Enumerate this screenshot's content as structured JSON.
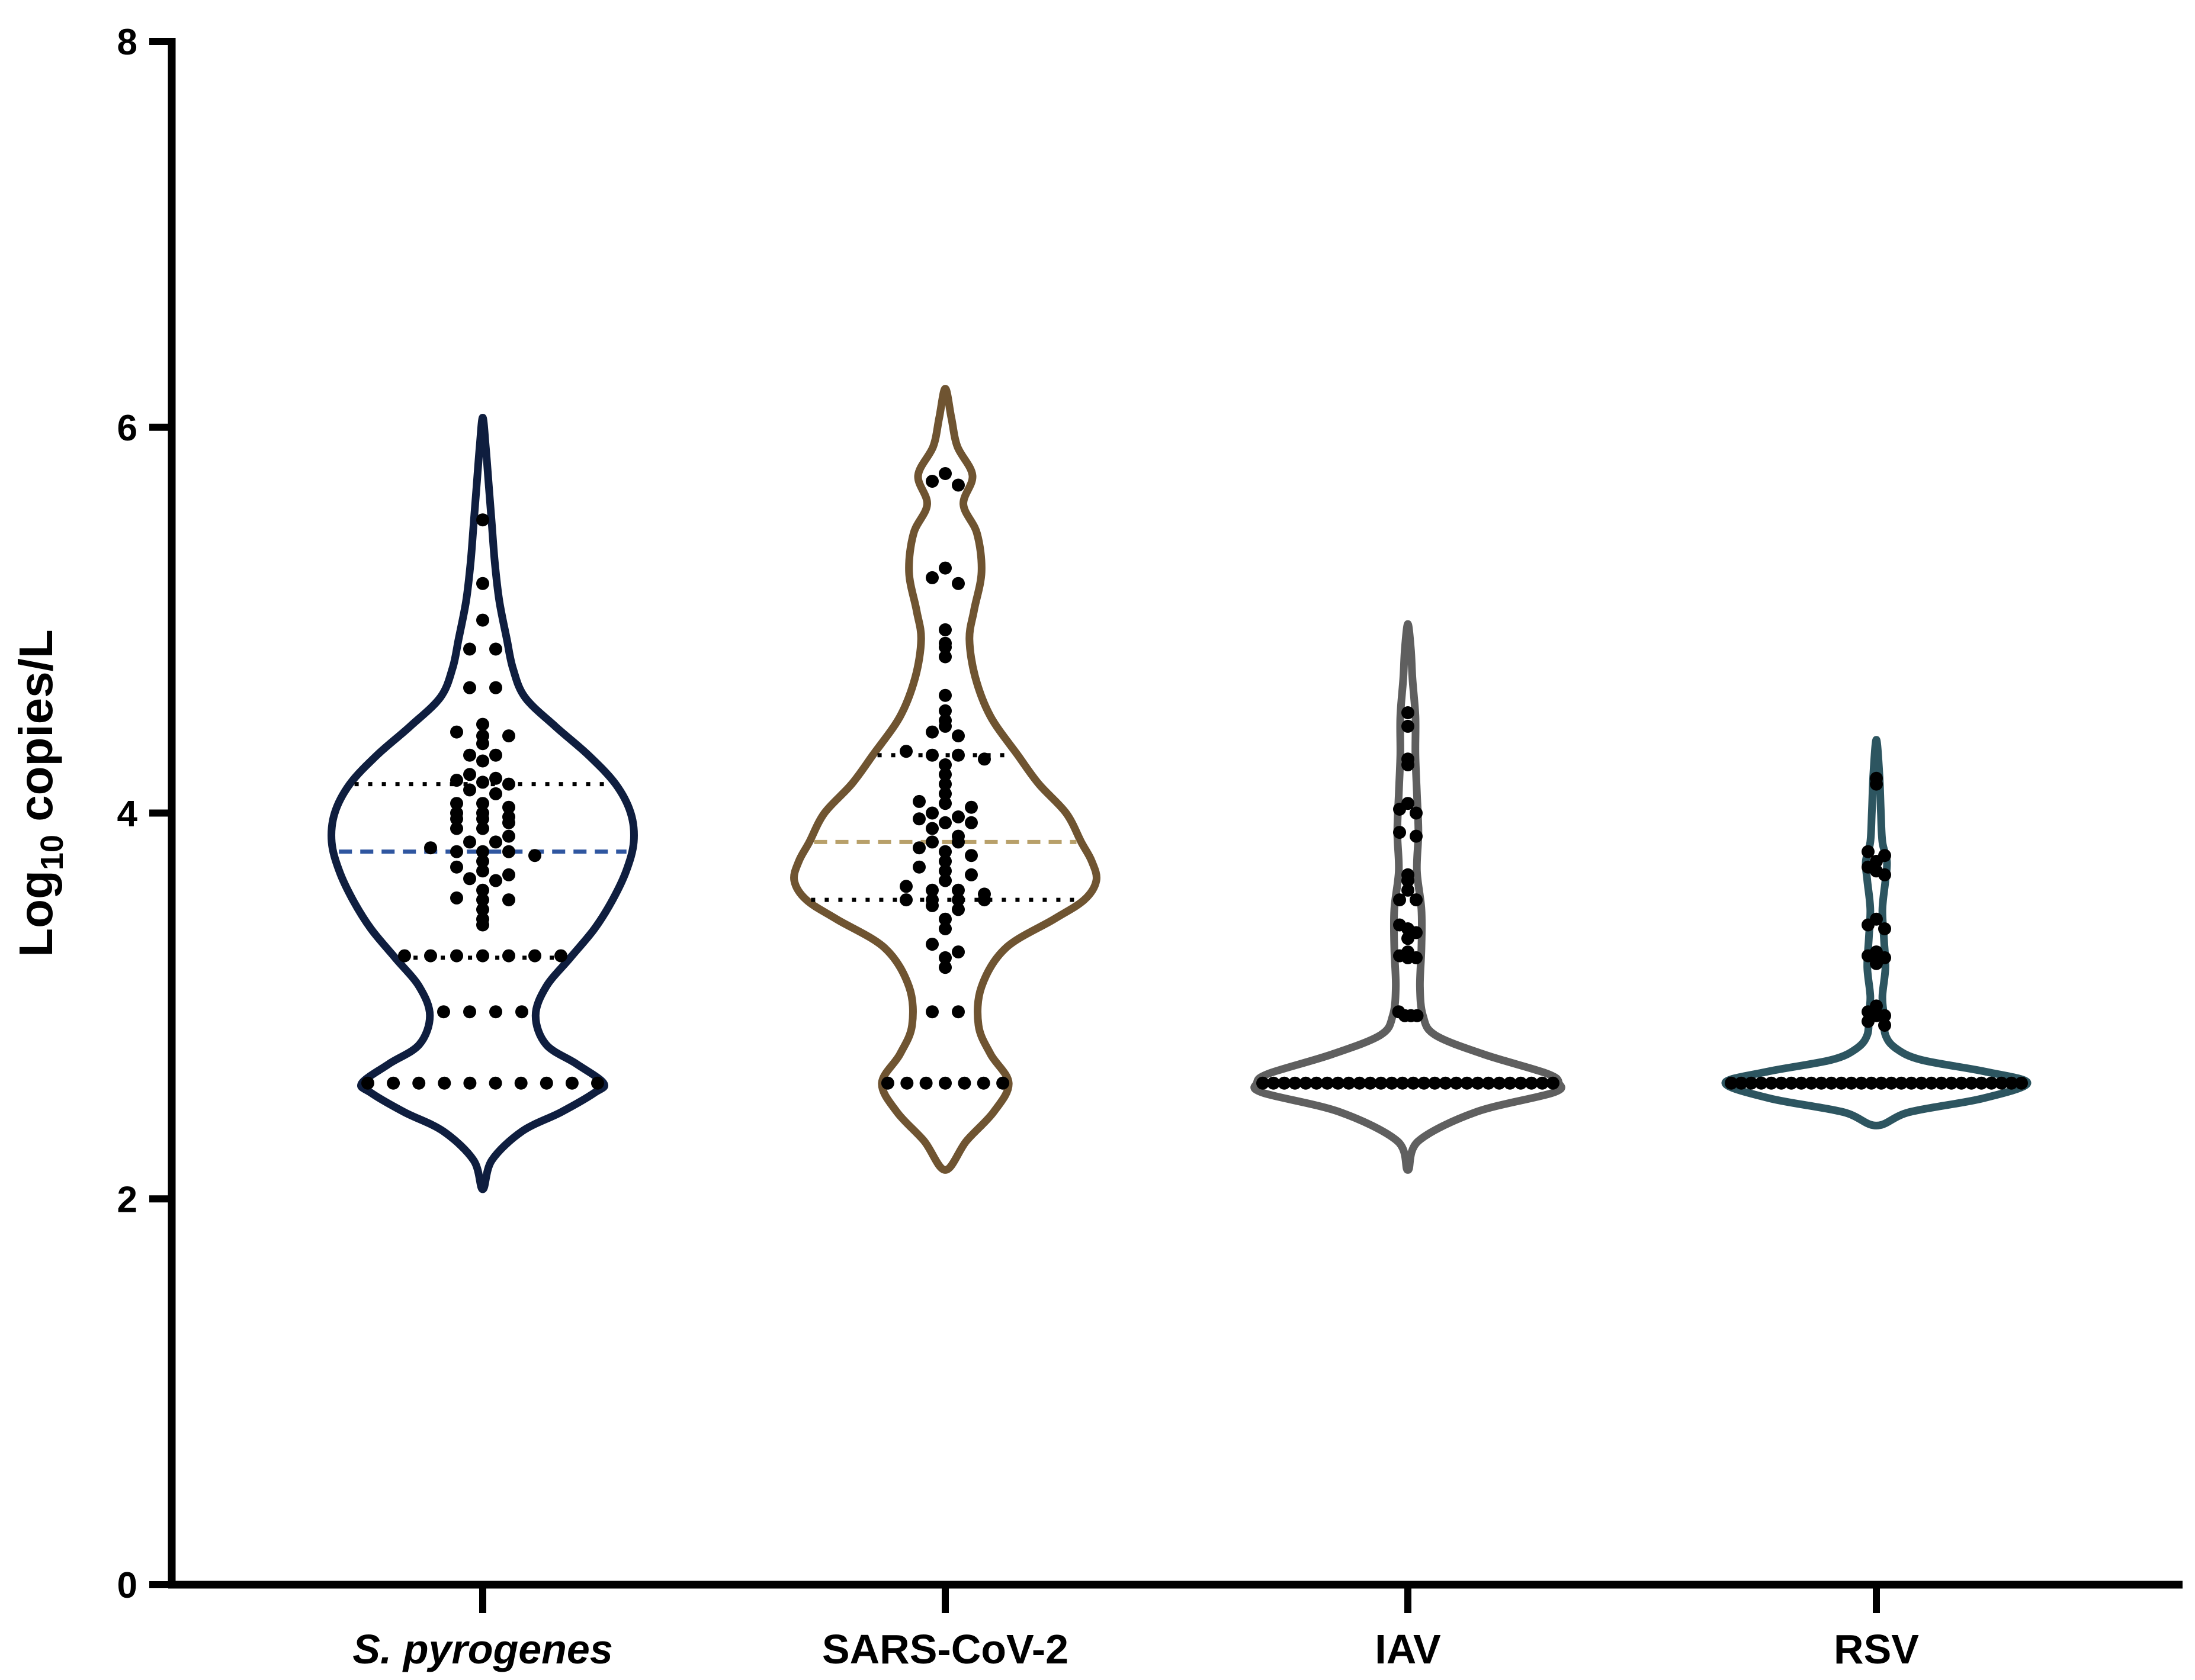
{
  "chart_data": {
    "type": "violin",
    "ylabel": {
      "base": "Log",
      "subscript": "10",
      "rest": " copies/L"
    },
    "ylim": [
      0,
      8
    ],
    "yticks": [
      "0",
      "2",
      "4",
      "6",
      "8"
    ],
    "detection_floor": 2.6,
    "series": [
      {
        "name": "S. pyrogenes",
        "italic": true,
        "color": "#0f1e3f",
        "median_color": "#2f56a0",
        "range": [
          2.05,
          6.05
        ],
        "median": 3.8,
        "q1": 3.25,
        "q3": 4.15,
        "profile": [
          [
            2.05,
            0
          ],
          [
            2.2,
            0.06
          ],
          [
            2.35,
            0.26
          ],
          [
            2.45,
            0.52
          ],
          [
            2.55,
            0.74
          ],
          [
            2.6,
            0.8
          ],
          [
            2.7,
            0.62
          ],
          [
            2.8,
            0.42
          ],
          [
            2.95,
            0.35
          ],
          [
            3.1,
            0.42
          ],
          [
            3.25,
            0.58
          ],
          [
            3.4,
            0.74
          ],
          [
            3.55,
            0.86
          ],
          [
            3.7,
            0.95
          ],
          [
            3.85,
            1.0
          ],
          [
            4.0,
            0.98
          ],
          [
            4.15,
            0.88
          ],
          [
            4.3,
            0.7
          ],
          [
            4.45,
            0.48
          ],
          [
            4.6,
            0.28
          ],
          [
            4.75,
            0.2
          ],
          [
            4.9,
            0.16
          ],
          [
            5.1,
            0.11
          ],
          [
            5.3,
            0.08
          ],
          [
            5.5,
            0.06
          ],
          [
            5.7,
            0.04
          ],
          [
            5.9,
            0.02
          ],
          [
            6.05,
            0
          ]
        ],
        "points": [
          5.52,
          5.19,
          5.0,
          4.85,
          4.85,
          4.65,
          4.65,
          4.46,
          4.42,
          4.4,
          4.4,
          4.36,
          4.3,
          4.3,
          4.27,
          4.2,
          4.18,
          4.17,
          4.16,
          4.15,
          4.12,
          4.1,
          4.05,
          4.05,
          4.03,
          4.0,
          4.0,
          3.98,
          3.97,
          3.97,
          3.95,
          3.92,
          3.92,
          3.88,
          3.85,
          3.85,
          3.82,
          3.8,
          3.8,
          3.8,
          3.78,
          3.75,
          3.72,
          3.7,
          3.68,
          3.66,
          3.65,
          3.6,
          3.56,
          3.55,
          3.55,
          3.5,
          3.45,
          3.42,
          3.26,
          3.26,
          3.26,
          3.26,
          3.26,
          3.26,
          3.26,
          2.97,
          2.97,
          2.97,
          2.97,
          2.6,
          2.6,
          2.6,
          2.6,
          2.6,
          2.6,
          2.6,
          2.6,
          2.6,
          2.6
        ]
      },
      {
        "name": "SARS-CoV-2",
        "italic": false,
        "color": "#6f5431",
        "median_color": "#b8a06a",
        "range": [
          2.15,
          6.2
        ],
        "median": 3.85,
        "q1": 3.55,
        "q3": 4.3,
        "profile": [
          [
            2.15,
            0
          ],
          [
            2.3,
            0.14
          ],
          [
            2.45,
            0.32
          ],
          [
            2.6,
            0.42
          ],
          [
            2.75,
            0.3
          ],
          [
            2.9,
            0.22
          ],
          [
            3.1,
            0.24
          ],
          [
            3.3,
            0.4
          ],
          [
            3.45,
            0.72
          ],
          [
            3.55,
            0.92
          ],
          [
            3.65,
            1.0
          ],
          [
            3.75,
            0.97
          ],
          [
            3.85,
            0.9
          ],
          [
            4.0,
            0.8
          ],
          [
            4.15,
            0.62
          ],
          [
            4.3,
            0.48
          ],
          [
            4.5,
            0.3
          ],
          [
            4.7,
            0.2
          ],
          [
            4.9,
            0.16
          ],
          [
            5.05,
            0.19
          ],
          [
            5.25,
            0.24
          ],
          [
            5.45,
            0.21
          ],
          [
            5.6,
            0.12
          ],
          [
            5.75,
            0.18
          ],
          [
            5.9,
            0.08
          ],
          [
            6.05,
            0.04
          ],
          [
            6.2,
            0
          ]
        ],
        "points": [
          5.76,
          5.72,
          5.7,
          5.27,
          5.22,
          5.19,
          4.95,
          4.88,
          4.86,
          4.81,
          4.61,
          4.53,
          4.48,
          4.45,
          4.42,
          4.4,
          4.32,
          4.3,
          4.3,
          4.28,
          4.25,
          4.2,
          4.15,
          4.1,
          4.06,
          4.05,
          4.03,
          4.0,
          3.98,
          3.97,
          3.95,
          3.95,
          3.92,
          3.88,
          3.85,
          3.85,
          3.82,
          3.8,
          3.78,
          3.75,
          3.72,
          3.7,
          3.68,
          3.65,
          3.62,
          3.6,
          3.6,
          3.58,
          3.55,
          3.55,
          3.55,
          3.55,
          3.52,
          3.5,
          3.45,
          3.4,
          3.32,
          3.28,
          3.25,
          3.2,
          2.97,
          2.97,
          2.6,
          2.6,
          2.6,
          2.6,
          2.6,
          2.6,
          2.6
        ]
      },
      {
        "name": "IAV",
        "italic": false,
        "color": "#5f5f5f",
        "median_color": "#000000",
        "range": [
          2.15,
          4.98
        ],
        "median": 2.6,
        "q1": 2.6,
        "q3": 3.4,
        "profile": [
          [
            2.15,
            0
          ],
          [
            2.3,
            0.07
          ],
          [
            2.45,
            0.45
          ],
          [
            2.55,
            0.96
          ],
          [
            2.6,
            1.0
          ],
          [
            2.65,
            0.92
          ],
          [
            2.75,
            0.5
          ],
          [
            2.85,
            0.18
          ],
          [
            2.95,
            0.1
          ],
          [
            3.1,
            0.08
          ],
          [
            3.3,
            0.09
          ],
          [
            3.5,
            0.09
          ],
          [
            3.7,
            0.06
          ],
          [
            3.9,
            0.07
          ],
          [
            4.1,
            0.06
          ],
          [
            4.3,
            0.05
          ],
          [
            4.5,
            0.05
          ],
          [
            4.7,
            0.03
          ],
          [
            4.85,
            0.02
          ],
          [
            4.98,
            0
          ]
        ],
        "points": [
          4.52,
          4.45,
          4.28,
          4.25,
          4.05,
          4.02,
          4.0,
          3.9,
          3.88,
          3.68,
          3.65,
          3.6,
          3.55,
          3.55,
          3.42,
          3.4,
          3.38,
          3.35,
          3.28,
          3.26,
          3.25,
          3.25,
          2.97,
          2.95,
          2.95,
          2.95,
          2.6,
          2.6,
          2.6,
          2.6,
          2.6,
          2.6,
          2.6,
          2.6,
          2.6,
          2.6,
          2.6,
          2.6,
          2.6,
          2.6,
          2.6,
          2.6,
          2.6,
          2.6,
          2.6,
          2.6,
          2.6,
          2.6,
          2.6,
          2.6,
          2.6,
          2.6,
          2.6,
          2.6
        ]
      },
      {
        "name": "RSV",
        "italic": false,
        "color": "#2d5560",
        "median_color": "#000000",
        "range": [
          2.38,
          4.38
        ],
        "median": 2.6,
        "q1": 2.6,
        "q3": 2.6,
        "profile": [
          [
            2.38,
            0
          ],
          [
            2.45,
            0.22
          ],
          [
            2.52,
            0.7
          ],
          [
            2.6,
            1.0
          ],
          [
            2.66,
            0.72
          ],
          [
            2.72,
            0.3
          ],
          [
            2.78,
            0.13
          ],
          [
            2.85,
            0.06
          ],
          [
            2.95,
            0.05
          ],
          [
            3.05,
            0.04
          ],
          [
            3.2,
            0.06
          ],
          [
            3.35,
            0.05
          ],
          [
            3.5,
            0.04
          ],
          [
            3.65,
            0.06
          ],
          [
            3.75,
            0.07
          ],
          [
            3.85,
            0.04
          ],
          [
            4.0,
            0.03
          ],
          [
            4.2,
            0.02
          ],
          [
            4.38,
            0
          ]
        ],
        "points": [
          4.18,
          4.15,
          3.8,
          3.78,
          3.75,
          3.72,
          3.7,
          3.68,
          3.45,
          3.42,
          3.4,
          3.28,
          3.26,
          3.25,
          3.25,
          3.22,
          3.0,
          2.97,
          2.95,
          2.95,
          2.92,
          2.9,
          2.6,
          2.6,
          2.6,
          2.6,
          2.6,
          2.6,
          2.6,
          2.6,
          2.6,
          2.6,
          2.6,
          2.6,
          2.6,
          2.6,
          2.6,
          2.6,
          2.6,
          2.6,
          2.6,
          2.6,
          2.6,
          2.6,
          2.6,
          2.6,
          2.6,
          2.6,
          2.6,
          2.6,
          2.6,
          2.6
        ]
      }
    ]
  }
}
